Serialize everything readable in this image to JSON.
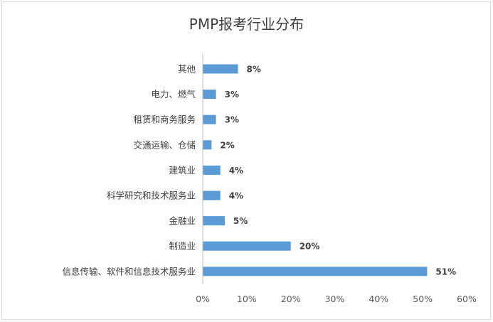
{
  "chart_data": {
    "type": "bar",
    "orientation": "horizontal",
    "title": "PMP报考行业分布",
    "categories": [
      "其他",
      "电力、燃气",
      "租赁和商务服务",
      "交通运输、仓储",
      "建筑业",
      "科学研究和技术服务业",
      "金融业",
      "制造业",
      "信息传输、软件和信息技术服务业"
    ],
    "values": [
      8,
      3,
      3,
      2,
      4,
      4,
      5,
      20,
      51
    ],
    "value_labels": [
      "8%",
      "3%",
      "3%",
      "2%",
      "4%",
      "4%",
      "5%",
      "20%",
      "51%"
    ],
    "x_ticks": [
      "0%",
      "10%",
      "20%",
      "30%",
      "40%",
      "50%",
      "60%"
    ],
    "xlim": [
      0,
      60
    ],
    "grid": false,
    "bar_color": "#5b9bd5"
  }
}
